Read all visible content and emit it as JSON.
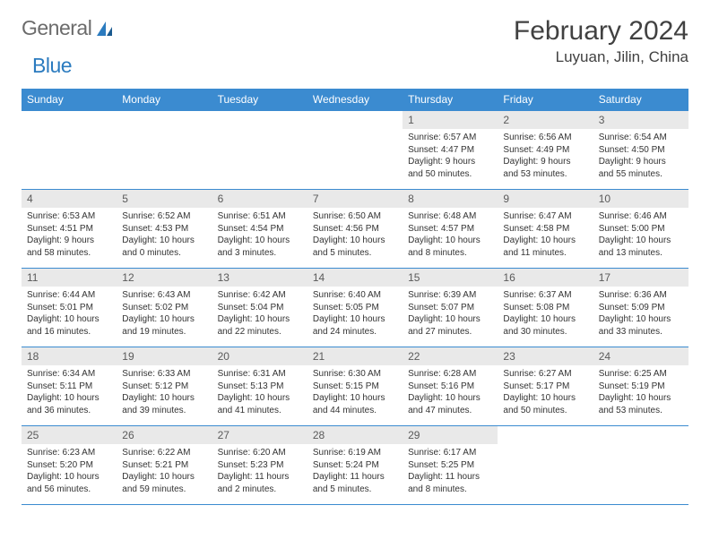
{
  "logo": {
    "general": "General",
    "blue": "Blue"
  },
  "title": "February 2024",
  "location": "Luyuan, Jilin, China",
  "colors": {
    "header_bg": "#3b8bd0",
    "header_text": "#ffffff",
    "daynum_bg": "#e9e9e9",
    "daynum_text": "#5a5a5a",
    "border": "#3b8bd0",
    "logo_gray": "#6b6b6b",
    "logo_blue": "#2b7bbf"
  },
  "weekdays": [
    "Sunday",
    "Monday",
    "Tuesday",
    "Wednesday",
    "Thursday",
    "Friday",
    "Saturday"
  ],
  "weeks": [
    [
      null,
      null,
      null,
      null,
      {
        "n": "1",
        "sr": "6:57 AM",
        "ss": "4:47 PM",
        "dl": "9 hours and 50 minutes."
      },
      {
        "n": "2",
        "sr": "6:56 AM",
        "ss": "4:49 PM",
        "dl": "9 hours and 53 minutes."
      },
      {
        "n": "3",
        "sr": "6:54 AM",
        "ss": "4:50 PM",
        "dl": "9 hours and 55 minutes."
      }
    ],
    [
      {
        "n": "4",
        "sr": "6:53 AM",
        "ss": "4:51 PM",
        "dl": "9 hours and 58 minutes."
      },
      {
        "n": "5",
        "sr": "6:52 AM",
        "ss": "4:53 PM",
        "dl": "10 hours and 0 minutes."
      },
      {
        "n": "6",
        "sr": "6:51 AM",
        "ss": "4:54 PM",
        "dl": "10 hours and 3 minutes."
      },
      {
        "n": "7",
        "sr": "6:50 AM",
        "ss": "4:56 PM",
        "dl": "10 hours and 5 minutes."
      },
      {
        "n": "8",
        "sr": "6:48 AM",
        "ss": "4:57 PM",
        "dl": "10 hours and 8 minutes."
      },
      {
        "n": "9",
        "sr": "6:47 AM",
        "ss": "4:58 PM",
        "dl": "10 hours and 11 minutes."
      },
      {
        "n": "10",
        "sr": "6:46 AM",
        "ss": "5:00 PM",
        "dl": "10 hours and 13 minutes."
      }
    ],
    [
      {
        "n": "11",
        "sr": "6:44 AM",
        "ss": "5:01 PM",
        "dl": "10 hours and 16 minutes."
      },
      {
        "n": "12",
        "sr": "6:43 AM",
        "ss": "5:02 PM",
        "dl": "10 hours and 19 minutes."
      },
      {
        "n": "13",
        "sr": "6:42 AM",
        "ss": "5:04 PM",
        "dl": "10 hours and 22 minutes."
      },
      {
        "n": "14",
        "sr": "6:40 AM",
        "ss": "5:05 PM",
        "dl": "10 hours and 24 minutes."
      },
      {
        "n": "15",
        "sr": "6:39 AM",
        "ss": "5:07 PM",
        "dl": "10 hours and 27 minutes."
      },
      {
        "n": "16",
        "sr": "6:37 AM",
        "ss": "5:08 PM",
        "dl": "10 hours and 30 minutes."
      },
      {
        "n": "17",
        "sr": "6:36 AM",
        "ss": "5:09 PM",
        "dl": "10 hours and 33 minutes."
      }
    ],
    [
      {
        "n": "18",
        "sr": "6:34 AM",
        "ss": "5:11 PM",
        "dl": "10 hours and 36 minutes."
      },
      {
        "n": "19",
        "sr": "6:33 AM",
        "ss": "5:12 PM",
        "dl": "10 hours and 39 minutes."
      },
      {
        "n": "20",
        "sr": "6:31 AM",
        "ss": "5:13 PM",
        "dl": "10 hours and 41 minutes."
      },
      {
        "n": "21",
        "sr": "6:30 AM",
        "ss": "5:15 PM",
        "dl": "10 hours and 44 minutes."
      },
      {
        "n": "22",
        "sr": "6:28 AM",
        "ss": "5:16 PM",
        "dl": "10 hours and 47 minutes."
      },
      {
        "n": "23",
        "sr": "6:27 AM",
        "ss": "5:17 PM",
        "dl": "10 hours and 50 minutes."
      },
      {
        "n": "24",
        "sr": "6:25 AM",
        "ss": "5:19 PM",
        "dl": "10 hours and 53 minutes."
      }
    ],
    [
      {
        "n": "25",
        "sr": "6:23 AM",
        "ss": "5:20 PM",
        "dl": "10 hours and 56 minutes."
      },
      {
        "n": "26",
        "sr": "6:22 AM",
        "ss": "5:21 PM",
        "dl": "10 hours and 59 minutes."
      },
      {
        "n": "27",
        "sr": "6:20 AM",
        "ss": "5:23 PM",
        "dl": "11 hours and 2 minutes."
      },
      {
        "n": "28",
        "sr": "6:19 AM",
        "ss": "5:24 PM",
        "dl": "11 hours and 5 minutes."
      },
      {
        "n": "29",
        "sr": "6:17 AM",
        "ss": "5:25 PM",
        "dl": "11 hours and 8 minutes."
      },
      null,
      null
    ]
  ],
  "labels": {
    "sunrise": "Sunrise:",
    "sunset": "Sunset:",
    "daylight": "Daylight:"
  }
}
